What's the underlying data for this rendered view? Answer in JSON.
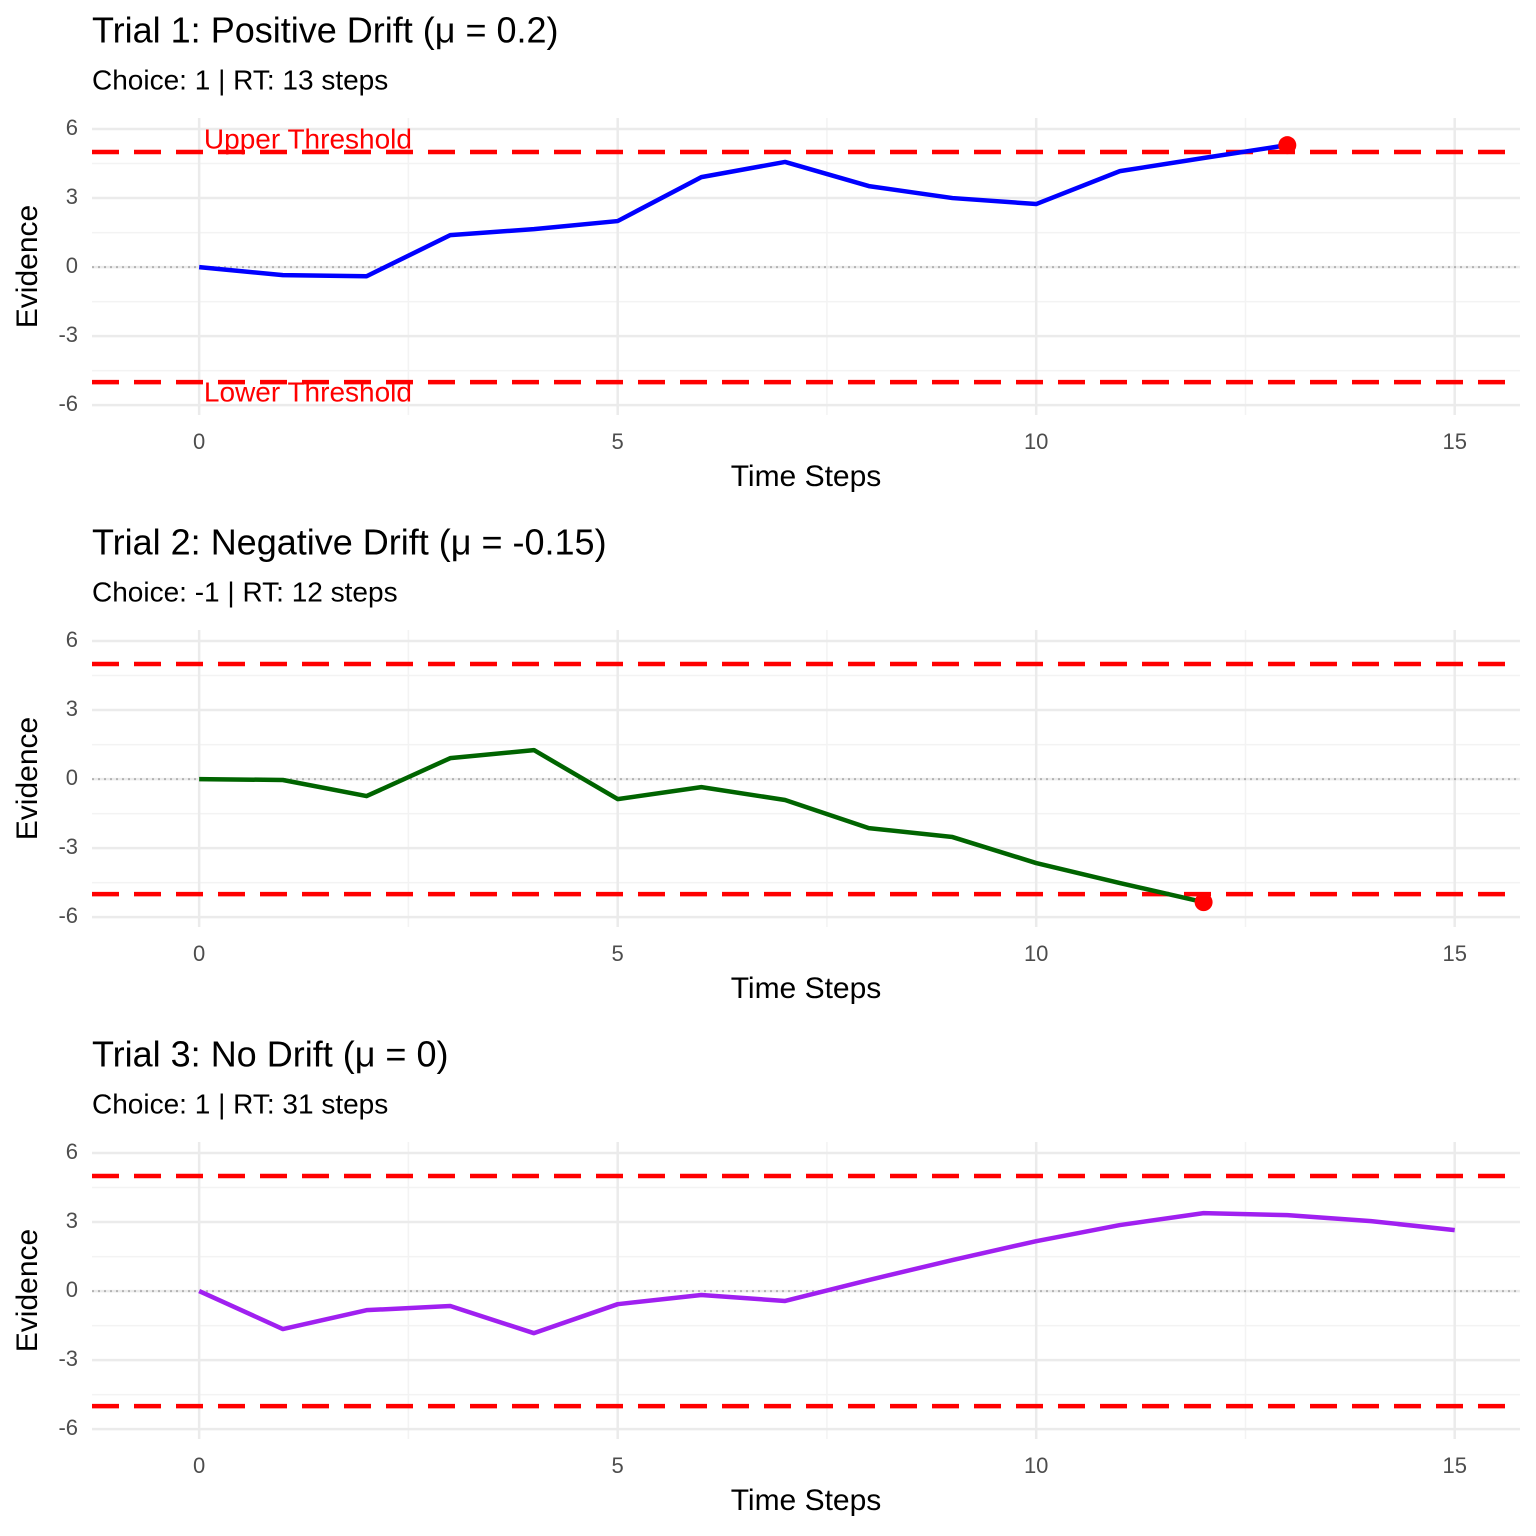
{
  "chart_data": [
    {
      "type": "line",
      "title": "Trial 1: Positive Drift (μ = 0.2)",
      "subtitle": "Choice: 1 | RT: 13 steps",
      "xlabel": "Time Steps",
      "ylabel": "Evidence",
      "x": [
        0,
        1,
        2,
        3,
        4,
        5,
        6,
        7,
        8,
        9,
        10,
        11,
        12,
        13
      ],
      "values": [
        0,
        -0.35,
        -0.4,
        1.39,
        1.65,
        2.0,
        3.91,
        4.57,
        3.52,
        3.0,
        2.74,
        4.17,
        4.74,
        5.3
      ],
      "color": "#0000ff",
      "xlim": [
        -1.28,
        15.78
      ],
      "ylim": [
        -6.43,
        6.48
      ],
      "xticks": [
        0,
        5,
        10,
        15
      ],
      "yticks": [
        -6,
        -3,
        0,
        3,
        6
      ],
      "grid": true,
      "thresholds": [
        5,
        -5
      ],
      "threshold_color": "#ff0000",
      "reference_line": 0,
      "endpoint": {
        "x": 13,
        "y": 5.3,
        "color": "#ff0000"
      },
      "annotations": [
        {
          "text": "Upper Threshold",
          "x": 1.3,
          "y": 5.48,
          "color": "#ff0000"
        },
        {
          "text": "Lower Threshold",
          "x": 1.3,
          "y": -5.52,
          "color": "#ff0000"
        }
      ]
    },
    {
      "type": "line",
      "title": "Trial 2: Negative Drift (μ = -0.15)",
      "subtitle": "Choice: -1 | RT: 12 steps",
      "xlabel": "Time Steps",
      "ylabel": "Evidence",
      "x": [
        0,
        1,
        2,
        3,
        4,
        5,
        6,
        7,
        8,
        9,
        10,
        11,
        12
      ],
      "values": [
        0,
        -0.04,
        -0.74,
        0.91,
        1.26,
        -0.87,
        -0.35,
        -0.91,
        -2.13,
        -2.52,
        -3.65,
        -4.52,
        -5.35
      ],
      "color": "#006400",
      "xlim": [
        -1.28,
        15.78
      ],
      "ylim": [
        -6.43,
        6.48
      ],
      "xticks": [
        0,
        5,
        10,
        15
      ],
      "yticks": [
        -6,
        -3,
        0,
        3,
        6
      ],
      "grid": true,
      "thresholds": [
        5,
        -5
      ],
      "threshold_color": "#ff0000",
      "reference_line": 0,
      "endpoint": {
        "x": 12,
        "y": -5.35,
        "color": "#ff0000"
      }
    },
    {
      "type": "line",
      "title": "Trial 3: No Drift (μ = 0)",
      "subtitle": "Choice: 1 | RT: 31 steps",
      "xlabel": "Time Steps",
      "ylabel": "Evidence",
      "x": [
        0,
        1,
        2,
        3,
        4,
        5,
        6,
        7,
        8,
        9,
        10,
        11,
        12,
        13,
        14,
        15
      ],
      "values": [
        0,
        -1.65,
        -0.83,
        -0.65,
        -1.83,
        -0.57,
        -0.17,
        -0.43,
        0.48,
        1.35,
        2.17,
        2.87,
        3.39,
        3.3,
        3.04,
        2.65
      ],
      "color": "#a020f0",
      "xlim": [
        -1.28,
        15.78
      ],
      "ylim": [
        -6.43,
        6.48
      ],
      "xticks": [
        0,
        5,
        10,
        15
      ],
      "yticks": [
        -6,
        -3,
        0,
        3,
        6
      ],
      "grid": true,
      "thresholds": [
        5,
        -5
      ],
      "threshold_color": "#ff0000",
      "reference_line": 0
    }
  ]
}
